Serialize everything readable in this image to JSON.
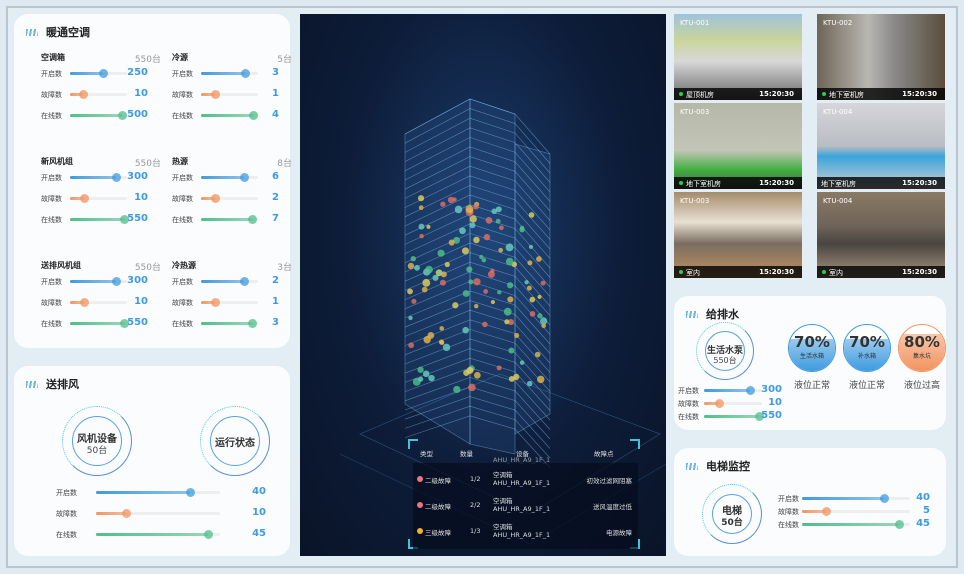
{
  "colors": {
    "open": "#3f9be0",
    "fault": "#f2945f",
    "online": "#4fbf8a",
    "value": "#3f9be0",
    "alarm_level2": "#ef7381",
    "alarm_level3": "#f3b322",
    "camera_status": "#2ecc55"
  },
  "row_labels": {
    "open": "开启数",
    "fault": "故障数",
    "online": "在线数"
  },
  "hvac": {
    "title": "暖通空调",
    "groups": [
      {
        "name": "空调箱",
        "total": "550台",
        "rows": [
          {
            "key": "open",
            "value": "250",
            "fill": 0.58
          },
          {
            "key": "fault",
            "value": "10",
            "fill": 0.22
          },
          {
            "key": "online",
            "value": "500",
            "fill": 0.92
          }
        ]
      },
      {
        "name": "冷源",
        "total": "5台",
        "rows": [
          {
            "key": "open",
            "value": "3",
            "fill": 0.78
          },
          {
            "key": "fault",
            "value": "1",
            "fill": 0.25
          },
          {
            "key": "online",
            "value": "4",
            "fill": 0.92
          }
        ]
      },
      {
        "name": "新风机组",
        "total": "550台",
        "rows": [
          {
            "key": "open",
            "value": "300",
            "fill": 0.8
          },
          {
            "key": "fault",
            "value": "10",
            "fill": 0.25
          },
          {
            "key": "online",
            "value": "550",
            "fill": 0.95
          }
        ]
      },
      {
        "name": "热源",
        "total": "8台",
        "rows": [
          {
            "key": "open",
            "value": "6",
            "fill": 0.75
          },
          {
            "key": "fault",
            "value": "2",
            "fill": 0.25
          },
          {
            "key": "online",
            "value": "7",
            "fill": 0.9
          }
        ]
      },
      {
        "name": "送排风机组",
        "total": "550台",
        "rows": [
          {
            "key": "open",
            "value": "300",
            "fill": 0.8
          },
          {
            "key": "fault",
            "value": "10",
            "fill": 0.25
          },
          {
            "key": "online",
            "value": "550",
            "fill": 0.95
          }
        ]
      },
      {
        "name": "冷热源",
        "total": "3台",
        "rows": [
          {
            "key": "open",
            "value": "2",
            "fill": 0.75
          },
          {
            "key": "fault",
            "value": "1",
            "fill": 0.25
          },
          {
            "key": "online",
            "value": "3",
            "fill": 0.9
          }
        ]
      }
    ]
  },
  "ventilation": {
    "title": "送排风",
    "device_label": "风机设备",
    "device_count": "50台",
    "status_label": "运行状态",
    "rows": [
      {
        "key": "open",
        "value": "40",
        "fill": 0.76
      },
      {
        "key": "fault",
        "value": "10",
        "fill": 0.24
      },
      {
        "key": "online",
        "value": "45",
        "fill": 0.9
      }
    ]
  },
  "alarms": {
    "headers": [
      "类型",
      "数量",
      "设备",
      "故障点"
    ],
    "partial_row": "AHU_HR_A9_1F_1",
    "rows": [
      {
        "level": "二级故障",
        "color_key": "alarm_level2",
        "count": "1/2",
        "device_type": "空调箱",
        "device_id": "AHU_HR_A9_1F_1",
        "point": "初效过滤网阻塞"
      },
      {
        "level": "二级故障",
        "color_key": "alarm_level2",
        "count": "2/2",
        "device_type": "空调箱",
        "device_id": "AHU_HR_A9_1F_1",
        "point": "送风温度过低"
      },
      {
        "level": "三级故障",
        "color_key": "alarm_level3",
        "count": "1/3",
        "device_type": "空调箱",
        "device_id": "AHU_HR_A9_1F_1",
        "point": "电源故障"
      }
    ]
  },
  "cameras": [
    {
      "id": "KTU-001",
      "location": "屋顶机房",
      "time": "15:20:30",
      "online": true,
      "scene": "rooftop"
    },
    {
      "id": "KTU-002",
      "location": "地下室机房",
      "time": "15:20:30",
      "online": true,
      "scene": "plant"
    },
    {
      "id": "KTU-003",
      "location": "地下室机房",
      "time": "15:20:30",
      "online": true,
      "scene": "basement"
    },
    {
      "id": "KTU-004",
      "location": "地下室机房",
      "time": "15:20:30",
      "online": false,
      "scene": "compressor"
    },
    {
      "id": "KTU-003",
      "location": "室内",
      "time": "15:20:30",
      "online": true,
      "scene": "office"
    },
    {
      "id": "KTU-004",
      "location": "室内",
      "time": "15:20:30",
      "online": true,
      "scene": "office-dark"
    }
  ],
  "water": {
    "title": "给排水",
    "pump_label": "生活水泵",
    "pump_count": "550台",
    "rows": [
      {
        "key": "open",
        "value": "300",
        "fill": 0.8
      },
      {
        "key": "fault",
        "value": "10",
        "fill": 0.25
      },
      {
        "key": "online",
        "value": "550",
        "fill": 0.95
      }
    ],
    "tanks": [
      {
        "percent": "70%",
        "level": 0.7,
        "name": "生活水箱",
        "status": "液位正常",
        "color": "#3f9be0"
      },
      {
        "percent": "70%",
        "level": 0.7,
        "name": "补水箱",
        "status": "液位正常",
        "color": "#3f9be0"
      },
      {
        "percent": "80%",
        "level": 0.8,
        "name": "集水坑",
        "status": "液位过高",
        "color": "#f2945f"
      }
    ]
  },
  "elevator": {
    "title": "电梯监控",
    "label": "电梯",
    "count": "50台",
    "rows": [
      {
        "key": "open",
        "value": "40",
        "fill": 0.76
      },
      {
        "key": "fault",
        "value": "5",
        "fill": 0.22
      },
      {
        "key": "online",
        "value": "45",
        "fill": 0.9
      }
    ]
  }
}
